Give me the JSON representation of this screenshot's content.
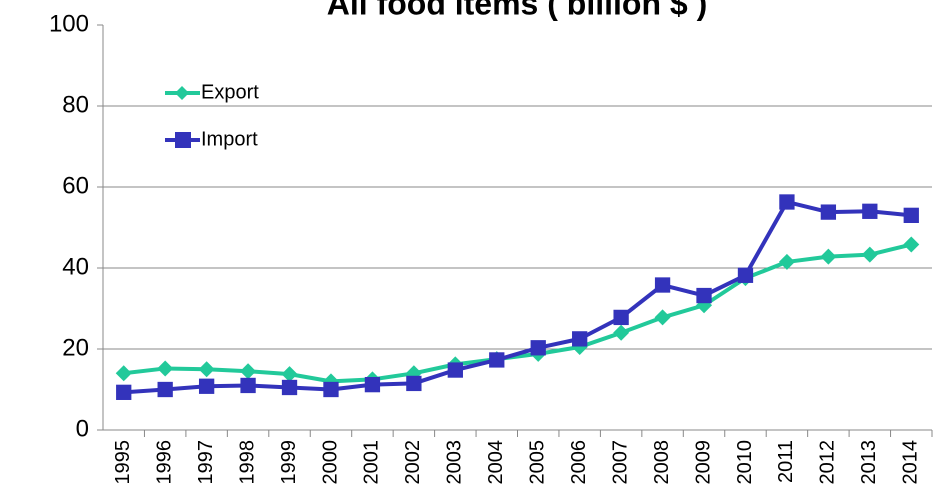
{
  "chart_data": {
    "type": "line",
    "title": "All food items  ( billion $ )",
    "categories": [
      "1995",
      "1996",
      "1997",
      "1998",
      "1999",
      "2000",
      "2001",
      "2002",
      "2003",
      "2004",
      "2005",
      "2006",
      "2007",
      "2008",
      "2009",
      "2010",
      "2011",
      "2012",
      "2013",
      "2014"
    ],
    "series": [
      {
        "name": "Export",
        "color": "#22c99a",
        "marker": "diamond",
        "values": [
          14,
          15.2,
          15,
          14.5,
          13.8,
          12,
          12.5,
          14,
          16.2,
          17.5,
          18.8,
          20.5,
          24,
          27.8,
          30.8,
          37.5,
          41.5,
          42.8,
          43.3,
          45.8
        ]
      },
      {
        "name": "Import",
        "color": "#3333bb",
        "marker": "square",
        "values": [
          9.3,
          10,
          10.8,
          11,
          10.5,
          10,
          11.2,
          11.5,
          14.8,
          17.3,
          20.3,
          22.5,
          27.8,
          35.8,
          33.2,
          38.2,
          56.3,
          53.8,
          54,
          53
        ]
      }
    ],
    "ylim": [
      0,
      100
    ],
    "yticks": [
      0,
      20,
      40,
      60,
      80,
      100
    ],
    "grid": true,
    "legend": "upper-left"
  }
}
